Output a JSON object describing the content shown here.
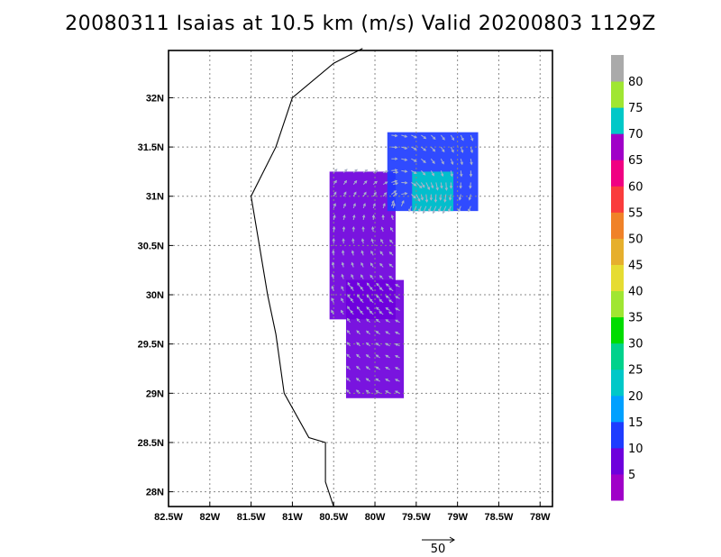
{
  "title": "20080311 Isaias at 10.5 km (m/s) Valid 20200803 1129Z",
  "chart_data": {
    "type": "heatmap",
    "title": "20080311 Isaias at 10.5 km (m/s) Valid 20200803 1129Z",
    "x_ticks": [
      {
        "value": -82.5,
        "label": "82.5W"
      },
      {
        "value": -82.0,
        "label": "82W"
      },
      {
        "value": -81.5,
        "label": "81.5W"
      },
      {
        "value": -81.0,
        "label": "81W"
      },
      {
        "value": -80.5,
        "label": "80.5W"
      },
      {
        "value": -80.0,
        "label": "80W"
      },
      {
        "value": -79.5,
        "label": "79.5W"
      },
      {
        "value": -79.0,
        "label": "79W"
      },
      {
        "value": -78.5,
        "label": "78.5W"
      },
      {
        "value": -78.0,
        "label": "78W"
      }
    ],
    "y_ticks": [
      {
        "value": 28.0,
        "label": "28N"
      },
      {
        "value": 28.5,
        "label": "28.5N"
      },
      {
        "value": 29.0,
        "label": "29N"
      },
      {
        "value": 29.5,
        "label": "29.5N"
      },
      {
        "value": 30.0,
        "label": "30N"
      },
      {
        "value": 30.5,
        "label": "30.5N"
      },
      {
        "value": 31.0,
        "label": "31N"
      },
      {
        "value": 31.5,
        "label": "31.5N"
      },
      {
        "value": 32.0,
        "label": "32N"
      }
    ],
    "xlim": [
      -82.5,
      -77.85
    ],
    "ylim": [
      27.85,
      32.48
    ],
    "grid": true,
    "coastline": [
      [
        -80.15,
        32.5
      ],
      [
        -80.5,
        32.35
      ],
      [
        -81.0,
        32.0
      ],
      [
        -81.2,
        31.5
      ],
      [
        -81.5,
        31.0
      ],
      [
        -81.4,
        30.5
      ],
      [
        -81.3,
        30.0
      ],
      [
        -81.2,
        29.6
      ],
      [
        -81.1,
        29.0
      ],
      [
        -80.8,
        28.55
      ],
      [
        -80.6,
        28.5
      ],
      [
        -80.6,
        28.1
      ],
      [
        -80.5,
        27.85
      ]
    ],
    "colorbar": {
      "levels": [
        0,
        5,
        10,
        15,
        20,
        25,
        30,
        35,
        40,
        45,
        50,
        55,
        60,
        65,
        70,
        75,
        80,
        85
      ],
      "labels": [
        "5",
        "10",
        "15",
        "20",
        "25",
        "30",
        "35",
        "40",
        "45",
        "50",
        "55",
        "60",
        "65",
        "70",
        "75",
        "80"
      ],
      "colors": [
        "#a000c8",
        "#6e00dc",
        "#1e3cff",
        "#00a0ff",
        "#00c8c8",
        "#00d28c",
        "#00dc00",
        "#a0e632",
        "#e6dc32",
        "#e6af2d",
        "#f08228",
        "#fa3c3c",
        "#f00082",
        "#a000c8",
        "#00c8c8",
        "#a0e632",
        "#aaaaaa"
      ]
    },
    "reference_vector": {
      "label": "50"
    },
    "wind_regions": [
      {
        "lon_range": [
          -80.55,
          -79.75
        ],
        "lat_range": [
          29.75,
          31.25
        ],
        "speed": 5
      },
      {
        "lon_range": [
          -80.35,
          -79.65
        ],
        "lat_range": [
          28.95,
          30.15
        ],
        "speed": 5
      },
      {
        "lon_range": [
          -79.85,
          -78.75
        ],
        "lat_range": [
          30.85,
          31.65
        ],
        "speed": 10
      },
      {
        "lon_range": [
          -79.55,
          -79.05
        ],
        "lat_range": [
          30.85,
          31.25
        ],
        "speed": 20
      }
    ]
  }
}
